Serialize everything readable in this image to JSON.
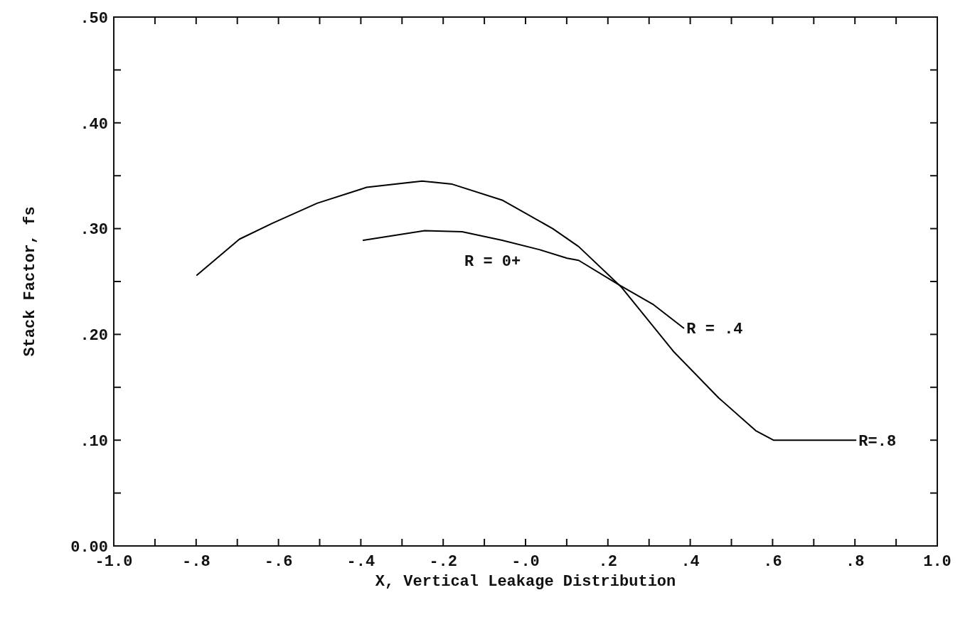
{
  "chart_data": {
    "type": "line",
    "xlabel": "X, Vertical Leakage Distribution",
    "ylabel": "Stack Factor, fs",
    "xlim": [
      -1.0,
      1.0
    ],
    "xticks": [
      {
        "value": -1.0,
        "label": "-1.0"
      },
      {
        "value": -0.9,
        "label": null
      },
      {
        "value": -0.8,
        "label": "-.8"
      },
      {
        "value": -0.7,
        "label": null
      },
      {
        "value": -0.6,
        "label": "-.6"
      },
      {
        "value": -0.5,
        "label": null
      },
      {
        "value": -0.4,
        "label": "-.4"
      },
      {
        "value": -0.3,
        "label": null
      },
      {
        "value": -0.2,
        "label": "-.2"
      },
      {
        "value": -0.1,
        "label": null
      },
      {
        "value": 0,
        "label": "-.0"
      },
      {
        "value": 0.1,
        "label": null
      },
      {
        "value": 0.2,
        "label": ".2"
      },
      {
        "value": 0.3,
        "label": null
      },
      {
        "value": 0.4,
        "label": ".4"
      },
      {
        "value": 0.5,
        "label": null
      },
      {
        "value": 0.6,
        "label": ".6"
      },
      {
        "value": 0.7,
        "label": null
      },
      {
        "value": 0.8,
        "label": ".8"
      },
      {
        "value": 0.9,
        "label": null
      },
      {
        "value": 1.0,
        "label": "1.0"
      }
    ],
    "ylim": [
      0,
      0.5
    ],
    "yticks": [
      {
        "value": 0,
        "label": "0.00"
      },
      {
        "value": 0.05,
        "label": null
      },
      {
        "value": 0.1,
        "label": ".10"
      },
      {
        "value": 0.15,
        "label": null
      },
      {
        "value": 0.2,
        "label": ".20"
      },
      {
        "value": 0.25,
        "label": null
      },
      {
        "value": 0.3,
        "label": ".30"
      },
      {
        "value": 0.35,
        "label": null
      },
      {
        "value": 0.4,
        "label": ".40"
      },
      {
        "value": 0.45,
        "label": null
      },
      {
        "value": 0.5,
        "label": ".50"
      }
    ],
    "grid": false,
    "marker": "none",
    "line_style": "solid",
    "series": [
      {
        "name": "R = .4",
        "color": "#000000",
        "x": [
          -0.394,
          -0.245,
          -0.154,
          -0.057,
          0.035,
          0.101,
          0.129,
          0.226,
          0.311,
          0.384
        ],
        "values": [
          0.289,
          0.298,
          0.297,
          0.289,
          0.28,
          0.272,
          0.27,
          0.247,
          0.228,
          0.206
        ]
      },
      {
        "name": "R=.8",
        "color": "#000000",
        "x": [
          -0.798,
          -0.695,
          -0.615,
          -0.506,
          -0.386,
          -0.251,
          -0.178,
          -0.057,
          0.066,
          0.129,
          0.232,
          0.359,
          0.469,
          0.559,
          0.602,
          0.802
        ],
        "values": [
          0.256,
          0.29,
          0.305,
          0.324,
          0.339,
          0.345,
          0.342,
          0.327,
          0.3,
          0.283,
          0.245,
          0.184,
          0.14,
          0.109,
          0.1,
          0.1
        ]
      }
    ],
    "annotations": [
      "R = 0+"
    ]
  }
}
